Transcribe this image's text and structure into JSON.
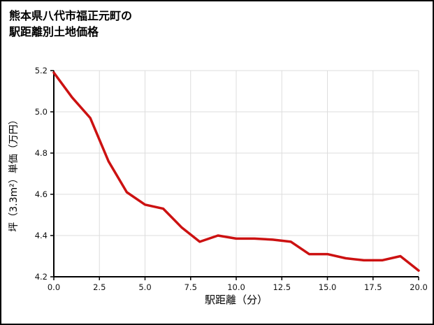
{
  "chart_data": {
    "type": "line",
    "title": "熊本県八代市福正元町の駅距離別土地価格",
    "title_lines": [
      "熊本県八代市福正元町の",
      "駅距離別土地価格"
    ],
    "xlabel": "駅距離（分）",
    "ylabel": "坪（3.3m²）単価（万円）",
    "x": [
      0,
      1,
      2,
      3,
      4,
      5,
      6,
      7,
      8,
      9,
      10,
      11,
      12,
      13,
      14,
      15,
      16,
      17,
      18,
      19,
      20
    ],
    "y": [
      5.19,
      5.07,
      4.97,
      4.76,
      4.61,
      4.55,
      4.53,
      4.44,
      4.37,
      4.4,
      4.385,
      4.385,
      4.38,
      4.37,
      4.31,
      4.31,
      4.29,
      4.28,
      4.28,
      4.3,
      4.23
    ],
    "xlim": [
      0,
      20
    ],
    "ylim": [
      4.2,
      5.2
    ],
    "xticks": [
      0,
      2.5,
      5,
      7.5,
      10,
      12.5,
      15,
      17.5,
      20
    ],
    "xtick_labels": [
      "0.0",
      "2.5",
      "5.0",
      "7.5",
      "10.0",
      "12.5",
      "15.0",
      "17.5",
      "20.0"
    ],
    "yticks": [
      4.2,
      4.4,
      4.6,
      4.8,
      5.0,
      5.2
    ],
    "ytick_labels": [
      "4.2",
      "4.4",
      "4.6",
      "4.8",
      "5.0",
      "5.2"
    ],
    "grid": true,
    "legend_position": "none",
    "colors": {
      "line": "#cc1111",
      "grid": "#dddddd",
      "axis": "#000000",
      "tick_text": "#111111"
    }
  }
}
